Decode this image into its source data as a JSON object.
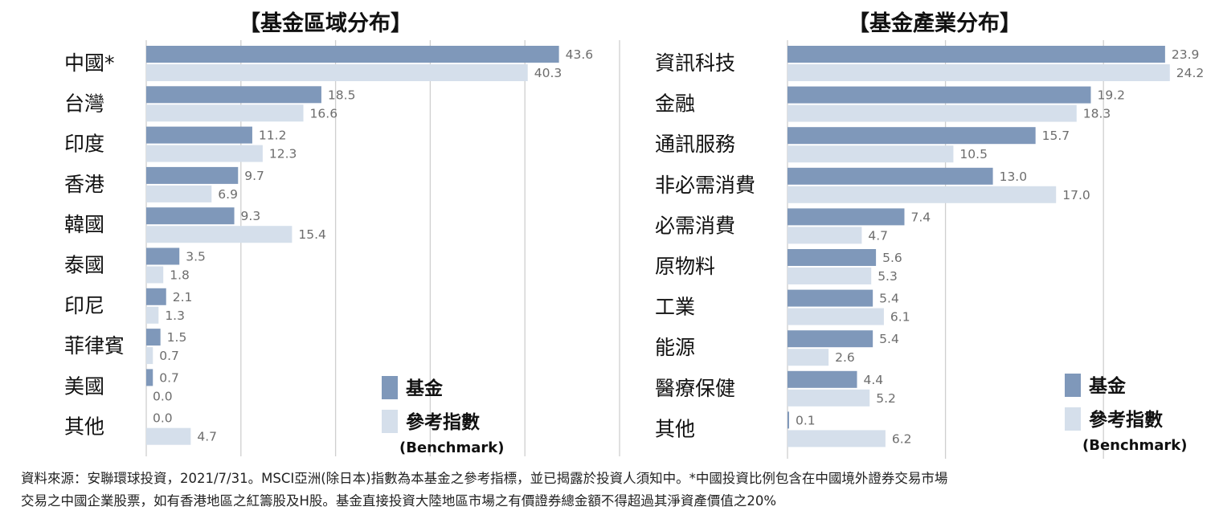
{
  "chart_data": [
    {
      "type": "bar",
      "orientation": "horizontal",
      "title": "【基金區域分布】",
      "categories": [
        "中國*",
        "台灣",
        "印度",
        "香港",
        "韓國",
        "泰國",
        "印尼",
        "菲律賓",
        "美國",
        "其他"
      ],
      "series": [
        {
          "name": "基金",
          "color": "#7f98ba",
          "values": [
            43.6,
            18.5,
            11.2,
            9.7,
            9.3,
            3.5,
            2.1,
            1.5,
            0.7,
            0.0
          ]
        },
        {
          "name": "參考指數",
          "color": "#d5dfeb",
          "values": [
            40.3,
            16.6,
            12.3,
            6.9,
            15.4,
            1.8,
            1.3,
            0.7,
            0.0,
            4.7
          ]
        }
      ],
      "value_labels": {
        "fund": [
          "43.6",
          "18.5",
          "11.2",
          "9.7",
          "9.3",
          "3.5",
          "2.1",
          "1.5",
          "0.7",
          "0.0"
        ],
        "benchmark": [
          "40.3",
          "16.6",
          "12.3",
          "6.9",
          "15.4",
          "1.8",
          "1.3",
          "0.7",
          "0.0",
          "4.7"
        ]
      },
      "xlim": [
        0,
        50
      ],
      "grid": true,
      "legend": {
        "position": "bottom-right",
        "items": [
          "基金",
          "參考指數"
        ],
        "note": "(Benchmark)"
      }
    },
    {
      "type": "bar",
      "orientation": "horizontal",
      "title": "【基金產業分布】",
      "categories": [
        "資訊科技",
        "金融",
        "通訊服務",
        "非必需消費",
        "必需消費",
        "原物料",
        "工業",
        "能源",
        "醫療保健",
        "其他"
      ],
      "series": [
        {
          "name": "基金",
          "color": "#7f98ba",
          "values": [
            23.9,
            19.2,
            15.7,
            13.0,
            7.4,
            5.6,
            5.4,
            5.4,
            4.4,
            0.1
          ]
        },
        {
          "name": "參考指數",
          "color": "#d5dfeb",
          "values": [
            24.2,
            18.3,
            10.5,
            17.0,
            4.7,
            5.3,
            6.1,
            2.6,
            5.2,
            6.2
          ]
        }
      ],
      "value_labels": {
        "fund": [
          "23.9",
          "19.2",
          "15.7",
          "13.0",
          "7.4",
          "5.6",
          "5.4",
          "5.4",
          "4.4",
          "0.1"
        ],
        "benchmark": [
          "24.2",
          "18.3",
          "10.5",
          "17.0",
          "4.7",
          "5.3",
          "6.1",
          "2.6",
          "5.2",
          "6.2"
        ]
      },
      "xlim": [
        0,
        25
      ],
      "grid": true,
      "legend": {
        "position": "bottom-right",
        "items": [
          "基金",
          "參考指數"
        ],
        "note": "(Benchmark)"
      }
    }
  ],
  "footnote": {
    "line1": "資料來源：安聯環球投資，2021/7/31。MSCI亞洲(除日本)指數為本基金之參考指標，並已揭露於投資人須知中。*中國投資比例包含在中國境外證券交易市場",
    "line2": "交易之中國企業股票，如有香港地區之紅籌股及H股。基金直接投資大陸地區市場之有價證券總金額不得超過其淨資產價值之20%"
  }
}
